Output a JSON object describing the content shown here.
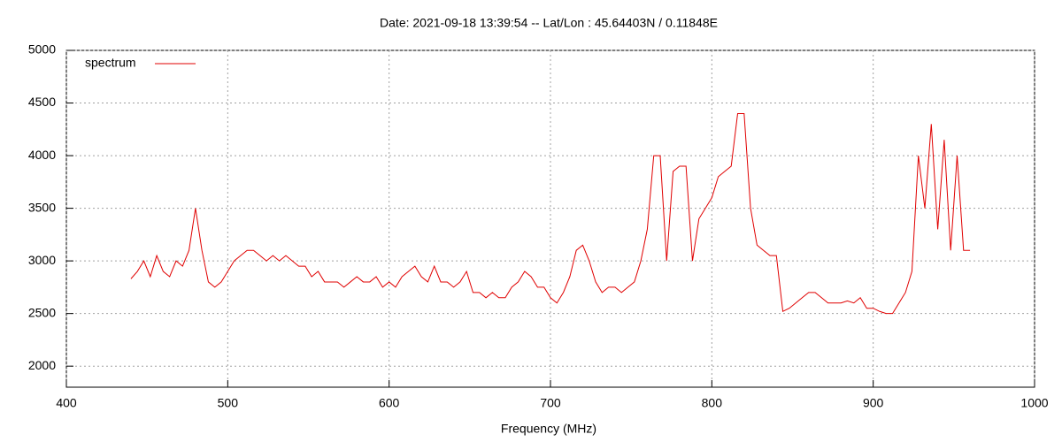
{
  "chart_data": {
    "type": "line",
    "title": "Date: 2021-09-18 13:39:54  --  Lat/Lon : 45.64403N / 0.11848E",
    "x_label": "Frequency (MHz)",
    "xlim": [
      400,
      1000
    ],
    "xticks": [
      400,
      500,
      600,
      700,
      800,
      900,
      1000
    ],
    "ylim": [
      1800,
      5000
    ],
    "yticks": [
      2000,
      2500,
      3000,
      3500,
      4000,
      4500,
      5000
    ],
    "grid": true,
    "legend": "top-left",
    "x": [
      440,
      444,
      448,
      452,
      456,
      460,
      464,
      468,
      472,
      476,
      480,
      484,
      488,
      492,
      496,
      500,
      504,
      508,
      512,
      516,
      520,
      524,
      528,
      532,
      536,
      540,
      544,
      548,
      552,
      556,
      560,
      564,
      568,
      572,
      576,
      580,
      584,
      588,
      592,
      596,
      600,
      604,
      608,
      612,
      616,
      620,
      624,
      628,
      632,
      636,
      640,
      644,
      648,
      652,
      656,
      660,
      664,
      668,
      672,
      676,
      680,
      684,
      688,
      692,
      696,
      700,
      704,
      708,
      712,
      716,
      720,
      724,
      728,
      732,
      736,
      740,
      744,
      748,
      752,
      756,
      760,
      764,
      768,
      772,
      776,
      780,
      784,
      788,
      792,
      796,
      800,
      804,
      808,
      812,
      816,
      820,
      824,
      828,
      832,
      836,
      840,
      844,
      848,
      852,
      856,
      860,
      864,
      868,
      872,
      876,
      880,
      884,
      888,
      892,
      896,
      900,
      904,
      908,
      912,
      916,
      920,
      924,
      928,
      932,
      936,
      940,
      944,
      948,
      952,
      956,
      960
    ],
    "series": [
      {
        "name": "spectrum",
        "color": "#e00000",
        "values": [
          2830,
          2900,
          3000,
          2850,
          3050,
          2900,
          2850,
          3000,
          2950,
          3100,
          3500,
          3100,
          2800,
          2750,
          2800,
          2900,
          3000,
          3050,
          3100,
          3100,
          3050,
          3000,
          3050,
          3000,
          3050,
          3000,
          2950,
          2950,
          2850,
          2900,
          2800,
          2800,
          2800,
          2750,
          2800,
          2850,
          2800,
          2800,
          2850,
          2750,
          2800,
          2750,
          2850,
          2900,
          2950,
          2850,
          2800,
          2950,
          2800,
          2800,
          2750,
          2800,
          2900,
          2700,
          2700,
          2650,
          2700,
          2650,
          2650,
          2750,
          2800,
          2900,
          2850,
          2750,
          2750,
          2650,
          2600,
          2700,
          2850,
          3100,
          3150,
          3000,
          2800,
          2700,
          2750,
          2750,
          2700,
          2750,
          2800,
          3000,
          3300,
          4000,
          4000,
          3000,
          3850,
          3900,
          3900,
          3000,
          3400,
          3500,
          3600,
          3800,
          3850,
          3900,
          4400,
          4400,
          3500,
          3150,
          3100,
          3050,
          3050,
          2520,
          2550,
          2600,
          2650,
          2700,
          2700,
          2650,
          2600,
          2600,
          2600,
          2620,
          2600,
          2650,
          2550,
          2550,
          2520,
          2500,
          2500,
          2600,
          2700,
          2900,
          4000,
          3500,
          4300,
          3300,
          4150,
          3100,
          4000,
          3100,
          3100
        ]
      }
    ]
  }
}
